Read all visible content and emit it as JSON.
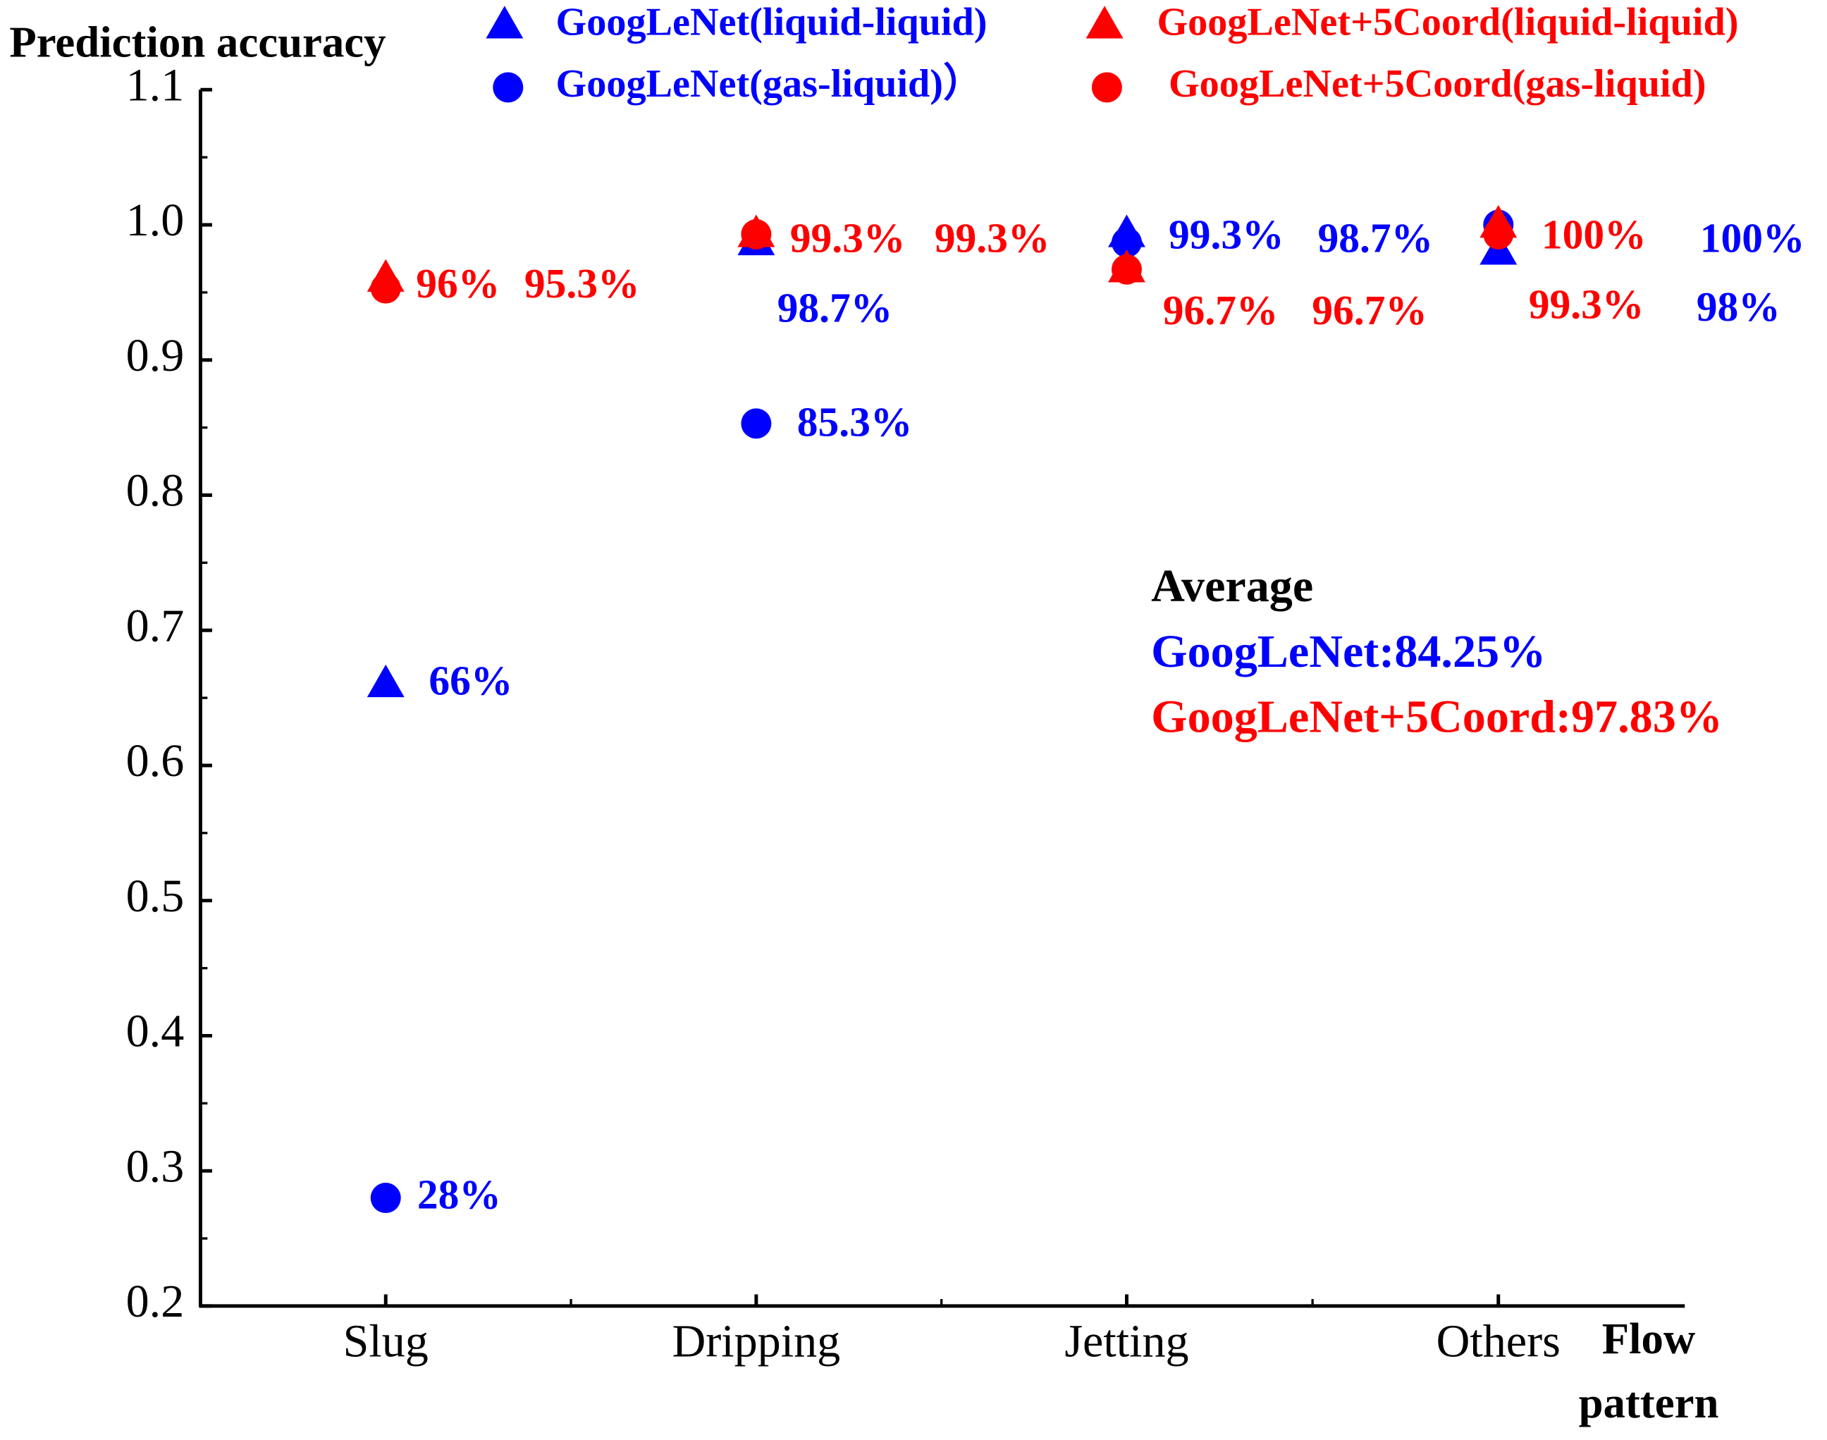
{
  "chart_data": {
    "type": "scatter",
    "y_label": "Prediction accuracy",
    "x_label": [
      "Flow",
      "pattern"
    ],
    "categories": [
      "Slug",
      "Dripping",
      "Jetting",
      "Others"
    ],
    "ylim": [
      0.2,
      1.1
    ],
    "yticks": [
      0.2,
      0.3,
      0.4,
      0.5,
      0.6,
      0.7,
      0.8,
      0.9,
      {
        "value": 1.0,
        "label": "1.0"
      },
      1.1
    ],
    "series": [
      {
        "name": "GoogLeNet(liquid-liquid)",
        "color": "#0000ff",
        "marker": "triangle",
        "values": [
          0.66,
          0.987,
          0.993,
          0.98
        ],
        "value_labels": [
          "66%",
          "98.7%",
          "99.3%",
          "98%"
        ]
      },
      {
        "name": "GoogLeNet(gas-liquid)）",
        "color": "#0000ff",
        "marker": "circle",
        "values": [
          0.28,
          0.853,
          0.987,
          1.0
        ],
        "value_labels": [
          "28%",
          "85.3%",
          "98.7%",
          "100%"
        ]
      },
      {
        "name": "GoogLeNet+5Coord(liquid-liquid)",
        "color": "#ff0000",
        "marker": "triangle",
        "values": [
          0.96,
          0.993,
          0.967,
          1.0
        ],
        "value_labels": [
          "96%",
          "99.3%",
          "96.7%",
          "100%"
        ]
      },
      {
        "name": "GoogLeNet+5Coord(gas-liquid)",
        "color": "#ff0000",
        "marker": "circle",
        "values": [
          0.953,
          0.993,
          0.967,
          0.993
        ],
        "value_labels": [
          "95.3%",
          "99.3%",
          "96.7%",
          "99.3%"
        ]
      }
    ],
    "annotations": [
      {
        "text": "Average",
        "color": "#000000"
      },
      {
        "text": "GoogLeNet:84.25%",
        "color": "#0000ff"
      },
      {
        "text": "GoogLeNet+5Coord:97.83%",
        "color": "#ff0000"
      }
    ]
  }
}
